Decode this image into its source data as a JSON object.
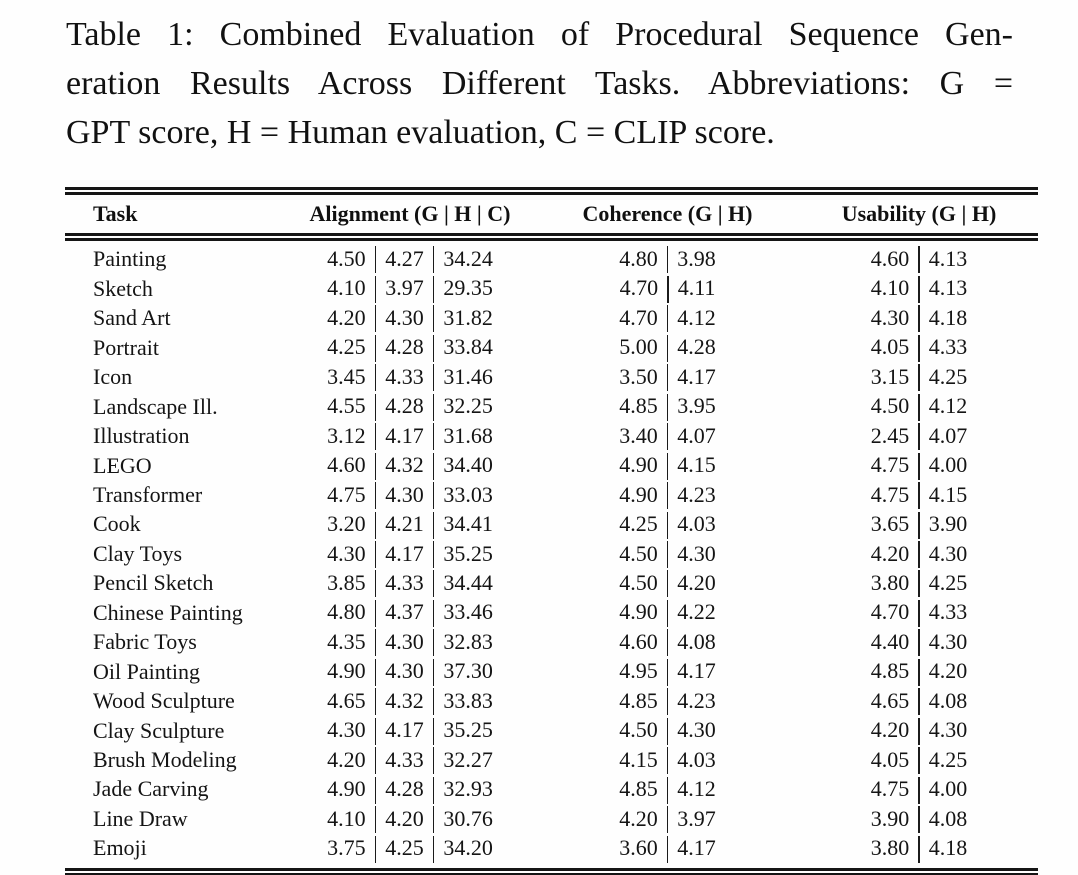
{
  "caption": {
    "lines": [
      "Table 1: Combined Evaluation of Procedural Sequence Gen-",
      "eration Results Across Different Tasks. Abbreviations: G =",
      "GPT score, H = Human evaluation, C = CLIP score."
    ]
  },
  "table": {
    "columns": [
      "Task",
      "Alignment (G | H | C)",
      "Coherence (G | H)",
      "Usability (G | H)"
    ],
    "rows": [
      {
        "task": "Painting",
        "alignment": [
          "4.50",
          "4.27",
          "34.24"
        ],
        "coherence": [
          "4.80",
          "3.98"
        ],
        "usability": [
          "4.60",
          "4.13"
        ]
      },
      {
        "task": "Sketch",
        "alignment": [
          "4.10",
          "3.97",
          "29.35"
        ],
        "coherence": [
          "4.70",
          "4.11"
        ],
        "usability": [
          "4.10",
          "4.13"
        ]
      },
      {
        "task": "Sand Art",
        "alignment": [
          "4.20",
          "4.30",
          "31.82"
        ],
        "coherence": [
          "4.70",
          "4.12"
        ],
        "usability": [
          "4.30",
          "4.18"
        ]
      },
      {
        "task": "Portrait",
        "alignment": [
          "4.25",
          "4.28",
          "33.84"
        ],
        "coherence": [
          "5.00",
          "4.28"
        ],
        "usability": [
          "4.05",
          "4.33"
        ]
      },
      {
        "task": "Icon",
        "alignment": [
          "3.45",
          "4.33",
          "31.46"
        ],
        "coherence": [
          "3.50",
          "4.17"
        ],
        "usability": [
          "3.15",
          "4.25"
        ]
      },
      {
        "task": "Landscape Ill.",
        "alignment": [
          "4.55",
          "4.28",
          "32.25"
        ],
        "coherence": [
          "4.85",
          "3.95"
        ],
        "usability": [
          "4.50",
          "4.12"
        ]
      },
      {
        "task": "Illustration",
        "alignment": [
          "3.12",
          "4.17",
          "31.68"
        ],
        "coherence": [
          "3.40",
          "4.07"
        ],
        "usability": [
          "2.45",
          "4.07"
        ]
      },
      {
        "task": "LEGO",
        "alignment": [
          "4.60",
          "4.32",
          "34.40"
        ],
        "coherence": [
          "4.90",
          "4.15"
        ],
        "usability": [
          "4.75",
          "4.00"
        ]
      },
      {
        "task": "Transformer",
        "alignment": [
          "4.75",
          "4.30",
          "33.03"
        ],
        "coherence": [
          "4.90",
          "4.23"
        ],
        "usability": [
          "4.75",
          "4.15"
        ]
      },
      {
        "task": "Cook",
        "alignment": [
          "3.20",
          "4.21",
          "34.41"
        ],
        "coherence": [
          "4.25",
          "4.03"
        ],
        "usability": [
          "3.65",
          "3.90"
        ]
      },
      {
        "task": "Clay Toys",
        "alignment": [
          "4.30",
          "4.17",
          "35.25"
        ],
        "coherence": [
          "4.50",
          "4.30"
        ],
        "usability": [
          "4.20",
          "4.30"
        ]
      },
      {
        "task": "Pencil Sketch",
        "alignment": [
          "3.85",
          "4.33",
          "34.44"
        ],
        "coherence": [
          "4.50",
          "4.20"
        ],
        "usability": [
          "3.80",
          "4.25"
        ]
      },
      {
        "task": "Chinese Painting",
        "alignment": [
          "4.80",
          "4.37",
          "33.46"
        ],
        "coherence": [
          "4.90",
          "4.22"
        ],
        "usability": [
          "4.70",
          "4.33"
        ]
      },
      {
        "task": "Fabric Toys",
        "alignment": [
          "4.35",
          "4.30",
          "32.83"
        ],
        "coherence": [
          "4.60",
          "4.08"
        ],
        "usability": [
          "4.40",
          "4.30"
        ]
      },
      {
        "task": "Oil Painting",
        "alignment": [
          "4.90",
          "4.30",
          "37.30"
        ],
        "coherence": [
          "4.95",
          "4.17"
        ],
        "usability": [
          "4.85",
          "4.20"
        ]
      },
      {
        "task": "Wood Sculpture",
        "alignment": [
          "4.65",
          "4.32",
          "33.83"
        ],
        "coherence": [
          "4.85",
          "4.23"
        ],
        "usability": [
          "4.65",
          "4.08"
        ]
      },
      {
        "task": "Clay Sculpture",
        "alignment": [
          "4.30",
          "4.17",
          "35.25"
        ],
        "coherence": [
          "4.50",
          "4.30"
        ],
        "usability": [
          "4.20",
          "4.30"
        ]
      },
      {
        "task": "Brush Modeling",
        "alignment": [
          "4.20",
          "4.33",
          "32.27"
        ],
        "coherence": [
          "4.15",
          "4.03"
        ],
        "usability": [
          "4.05",
          "4.25"
        ]
      },
      {
        "task": "Jade Carving",
        "alignment": [
          "4.90",
          "4.28",
          "32.93"
        ],
        "coherence": [
          "4.85",
          "4.12"
        ],
        "usability": [
          "4.75",
          "4.00"
        ]
      },
      {
        "task": "Line Draw",
        "alignment": [
          "4.10",
          "4.20",
          "30.76"
        ],
        "coherence": [
          "4.20",
          "3.97"
        ],
        "usability": [
          "3.90",
          "4.08"
        ]
      },
      {
        "task": "Emoji",
        "alignment": [
          "3.75",
          "4.25",
          "34.20"
        ],
        "coherence": [
          "3.60",
          "4.17"
        ],
        "usability": [
          "3.80",
          "4.18"
        ]
      }
    ]
  },
  "colors": {
    "text": "#151515",
    "rules": "#151515",
    "background": "#fefefe"
  }
}
